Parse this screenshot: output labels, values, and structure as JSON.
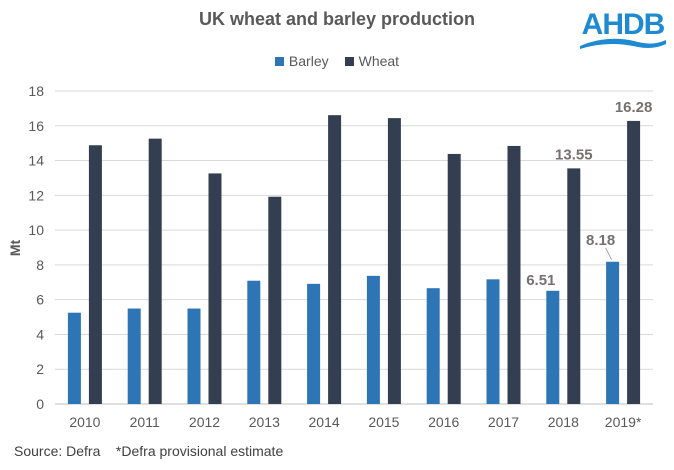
{
  "chart_data": {
    "type": "bar",
    "title": "UK wheat and barley production",
    "xlabel": "",
    "ylabel": "Mt",
    "ylim": [
      0,
      18
    ],
    "yticks": [
      0,
      2,
      4,
      6,
      8,
      10,
      12,
      14,
      16,
      18
    ],
    "grid": true,
    "legend_placement": "top",
    "categories": [
      "2010",
      "2011",
      "2012",
      "2013",
      "2014",
      "2015",
      "2016",
      "2017",
      "2018",
      "2019*"
    ],
    "series": [
      {
        "name": "Barley",
        "color": "#2E75B6",
        "values": [
          5.25,
          5.49,
          5.49,
          7.09,
          6.91,
          7.37,
          6.66,
          7.17,
          6.51,
          8.18
        ]
      },
      {
        "name": "Wheat",
        "color": "#333F50",
        "values": [
          14.88,
          15.26,
          13.26,
          11.92,
          16.61,
          16.44,
          14.38,
          14.84,
          13.55,
          16.28
        ]
      }
    ],
    "data_labels": [
      {
        "series": "Barley",
        "category": "2018",
        "text": "6.51"
      },
      {
        "series": "Barley",
        "category": "2019*",
        "text": "8.18"
      },
      {
        "series": "Wheat",
        "category": "2018",
        "text": "13.55"
      },
      {
        "series": "Wheat",
        "category": "2019*",
        "text": "16.28"
      }
    ]
  },
  "footer": {
    "source": "Source: Defra    *Defra provisional estimate"
  },
  "logo": {
    "text": "AHDB",
    "color": "#1D8AD1"
  }
}
